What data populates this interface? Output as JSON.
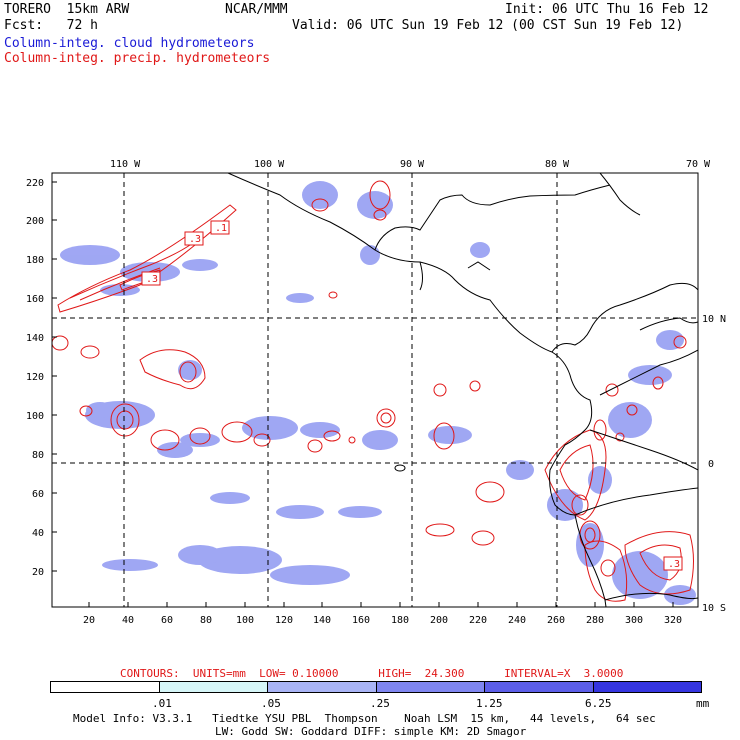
{
  "header": {
    "model": "TORERO  15km ARW",
    "org": "NCAR/MMM",
    "init": "Init: 06 UTC Thu 16 Feb 12",
    "fcst": "Fcst:   72 h",
    "valid": "Valid: 06 UTC Sun 19 Feb 12 (00 CST Sun 19 Feb 12)",
    "field1": "Column-integ. cloud hydrometeors",
    "field2": "Column-integ. precip. hydrometeors"
  },
  "axes": {
    "top_lon_labels": [
      "110 W",
      "100 W",
      "90 W",
      "80 W",
      "70 W"
    ],
    "left_y_labels": [
      "220",
      "200",
      "180",
      "160",
      "140",
      "120",
      "100",
      "80",
      "60",
      "40",
      "20"
    ],
    "bottom_x_labels": [
      "20",
      "40",
      "60",
      "80",
      "100",
      "120",
      "140",
      "160",
      "180",
      "200",
      "220",
      "240",
      "260",
      "280",
      "300",
      "320"
    ],
    "right_lat_labels": [
      "10 N",
      "0",
      "10 S"
    ]
  },
  "contour_labels": [
    ".1",
    ".3",
    ".3",
    ".3"
  ],
  "contours_info": "CONTOURS:  UNITS=mm  LOW= 0.10000      HIGH=  24.300      INTERVAL=X  3.0000",
  "legend": {
    "colors": [
      "#ffffff",
      "#d6f6f8",
      "#a9b4f5",
      "#7f86f0",
      "#5c5ee8",
      "#3535e0"
    ],
    "labels": [
      ".01",
      ".05",
      ".25",
      "1.25",
      "6.25"
    ],
    "units": "mm"
  },
  "footer": {
    "line1": "Model Info: V3.3.1   Tiedtke YSU PBL  Thompson    Noah LSM  15 km,   44 levels,   64 sec",
    "line2": "LW: Godd SW: Goddard DIFF: simple KM: 2D Smagor"
  },
  "colors": {
    "cloud": "#6f78ee",
    "precip": "#e01818",
    "frame": "#000000"
  }
}
